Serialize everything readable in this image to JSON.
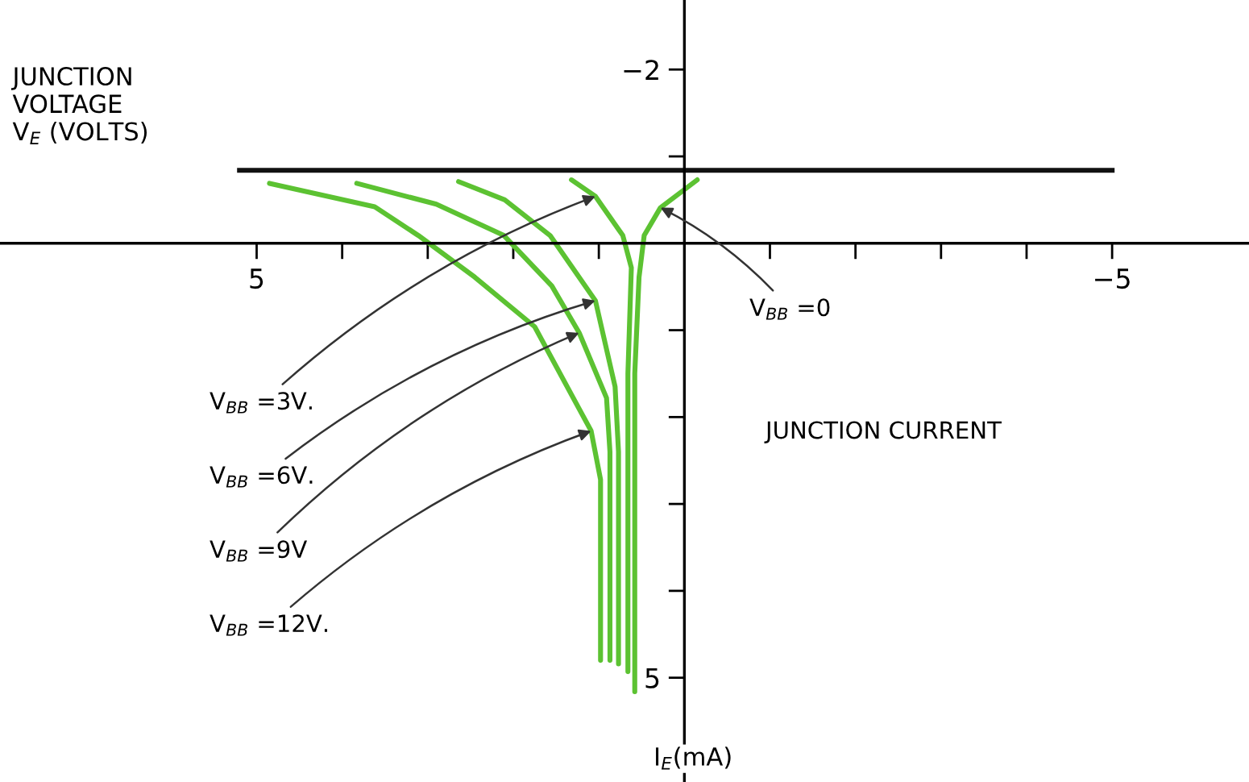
{
  "chart_data": {
    "type": "line",
    "xlabel": "JUNCTION\nVOLTAGE\nV$_{E}$ (VOLTS)",
    "ylabel": "I$_{E}$(mA)",
    "xlim": [
      8.0,
      -6.6
    ],
    "ylim": [
      6.2,
      -2.8
    ],
    "xticks": [
      {
        "value": 5,
        "label": "5"
      },
      {
        "value": 4,
        "label": null
      },
      {
        "value": 3,
        "label": null
      },
      {
        "value": 2,
        "label": null
      },
      {
        "value": 1,
        "label": null
      },
      {
        "value": -1,
        "label": null
      },
      {
        "value": -2,
        "label": null
      },
      {
        "value": -3,
        "label": null
      },
      {
        "value": -4,
        "label": null
      },
      {
        "value": -5,
        "label": "−5"
      }
    ],
    "yticks": [
      {
        "value": -2,
        "label": "−2"
      },
      {
        "value": -1,
        "label": null
      },
      {
        "value": 1,
        "label": null
      },
      {
        "value": 2,
        "label": null
      },
      {
        "value": 3,
        "label": null
      },
      {
        "value": 4,
        "label": null
      },
      {
        "value": 5,
        "label": "5"
      }
    ],
    "grid": false,
    "legend": false,
    "marker": "none",
    "line_style": "solid",
    "ref_lines": [
      {
        "axis": "y",
        "value": -0.84,
        "color": "#111111"
      }
    ],
    "series": [
      {
        "color": "#5cc232",
        "x": [
          4.85,
          3.62,
          3.11,
          2.45,
          1.75,
          1.09,
          0.98,
          0.98
        ],
        "values": [
          -0.69,
          -0.42,
          -0.09,
          0.39,
          0.96,
          2.16,
          2.72,
          4.8
        ]
      },
      {
        "color": "#5cc232",
        "x": [
          3.83,
          2.9,
          2.11,
          1.55,
          1.23,
          0.91,
          0.87,
          0.87
        ],
        "values": [
          -0.69,
          -0.45,
          -0.09,
          0.49,
          1.03,
          1.78,
          2.4,
          4.8
        ]
      },
      {
        "color": "#5cc232",
        "x": [
          2.64,
          2.1,
          1.57,
          1.04,
          0.81,
          0.77,
          0.77
        ],
        "values": [
          -0.71,
          -0.5,
          -0.09,
          0.66,
          1.65,
          2.4,
          4.84
        ]
      },
      {
        "color": "#5cc232",
        "x": [
          1.32,
          1.04,
          0.72,
          0.62,
          0.66,
          0.66
        ],
        "values": [
          -0.73,
          -0.54,
          -0.09,
          0.28,
          1.5,
          4.93
        ]
      },
      {
        "color": "#5cc232",
        "x": [
          -0.15,
          0.28,
          0.47,
          0.53,
          0.58,
          0.58
        ],
        "values": [
          -0.73,
          -0.41,
          -0.09,
          0.39,
          1.5,
          5.16
        ]
      }
    ],
    "annotations": [
      {
        "text": "V$_{BB}$ =3V.",
        "x": 1.04,
        "y": -0.54
      },
      {
        "text": "V$_{BB}$ =6V.",
        "x": 1.04,
        "y": 0.66
      },
      {
        "text": "V$_{BB}$ =9V",
        "x": 1.23,
        "y": 1.03
      },
      {
        "text": "V$_{BB}$ =12V.",
        "x": 1.09,
        "y": 2.16
      },
      {
        "text": "V$_{BB}$ =0",
        "x": 0.28,
        "y": -0.41
      },
      "JUNCTION CURRENT"
    ]
  }
}
